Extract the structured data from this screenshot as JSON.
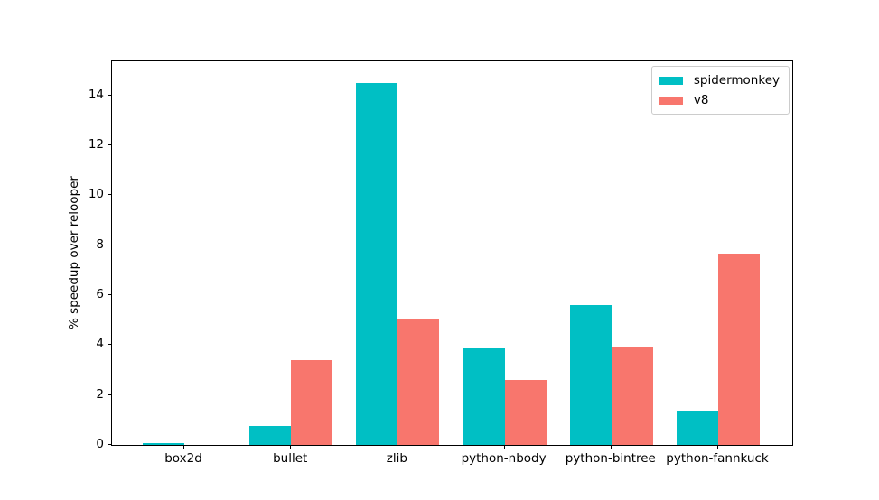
{
  "figure": {
    "background": "#ffffff",
    "spine_color": "#000000",
    "text_color": "#000000"
  },
  "chart_data": {
    "type": "bar",
    "title": "",
    "xlabel": "",
    "ylabel": "% speedup over relooper",
    "categories": [
      "box2d",
      "bullet",
      "zlib",
      "python-nbody",
      "python-bintree",
      "python-fannkuck"
    ],
    "series": [
      {
        "name": "spidermonkey",
        "color": "#00BFC4",
        "values": [
          0.09,
          0.75,
          14.5,
          3.86,
          5.62,
          1.39
        ]
      },
      {
        "name": "v8",
        "color": "#F8766D",
        "values": [
          0.0,
          3.41,
          5.05,
          2.59,
          3.89,
          7.66
        ]
      }
    ],
    "ylim": [
      0,
      15.36
    ],
    "yticks": [
      0,
      2,
      4,
      6,
      8,
      10,
      12,
      14
    ],
    "grid": false,
    "legend": {
      "position": "upper right",
      "border_color": "#cccccc",
      "background": "#ffffff"
    }
  }
}
